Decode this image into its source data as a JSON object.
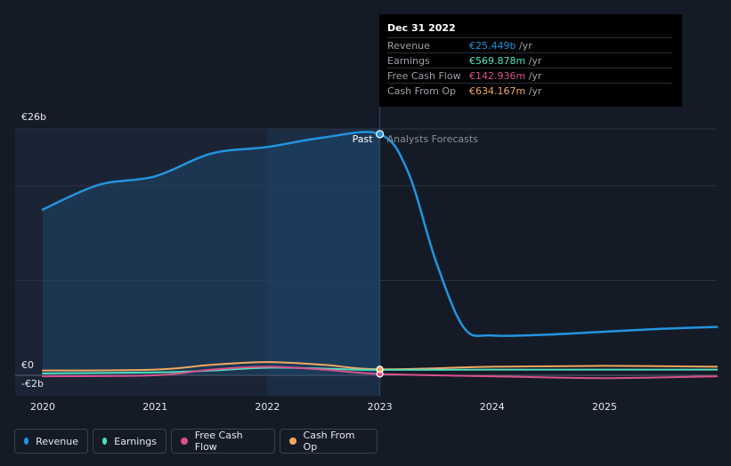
{
  "chart_data": {
    "type": "line",
    "title": "",
    "xlabel": "",
    "ylabel": "",
    "ylim": [
      -2,
      26
    ],
    "y_tick_labels": [
      "€26b",
      "€0",
      "-€2b"
    ],
    "x_tick_labels": [
      "2020",
      "2021",
      "2022",
      "2023",
      "2024",
      "2025"
    ],
    "past_label": "Past",
    "forecast_label": "Analysts Forecasts",
    "divider_x": 2023.0,
    "series": [
      {
        "name": "Revenue",
        "color": "#2394df",
        "points": [
          [
            2020.0,
            17.5
          ],
          [
            2020.5,
            20.1
          ],
          [
            2021.0,
            21.0
          ],
          [
            2021.5,
            23.4
          ],
          [
            2022.0,
            24.1
          ],
          [
            2022.5,
            25.1
          ],
          [
            2023.0,
            25.449
          ],
          [
            2023.25,
            21.5
          ],
          [
            2023.5,
            12.0
          ],
          [
            2023.75,
            5.0
          ],
          [
            2024.0,
            4.2
          ],
          [
            2024.5,
            4.3
          ],
          [
            2025.0,
            4.6
          ],
          [
            2025.5,
            4.9
          ],
          [
            2026.0,
            5.1
          ]
        ]
      },
      {
        "name": "Earnings",
        "color": "#4fe0c0",
        "points": [
          [
            2020.0,
            0.2
          ],
          [
            2021.0,
            0.3
          ],
          [
            2021.5,
            0.5
          ],
          [
            2022.0,
            0.8
          ],
          [
            2022.5,
            0.7
          ],
          [
            2023.0,
            0.57
          ],
          [
            2024.0,
            0.6
          ],
          [
            2025.0,
            0.6
          ],
          [
            2026.0,
            0.6
          ]
        ]
      },
      {
        "name": "Free Cash Flow",
        "color": "#d9508a",
        "points": [
          [
            2020.0,
            -0.1
          ],
          [
            2021.0,
            0.0
          ],
          [
            2021.5,
            0.6
          ],
          [
            2022.0,
            0.9
          ],
          [
            2022.5,
            0.6
          ],
          [
            2023.0,
            0.143
          ],
          [
            2024.0,
            -0.1
          ],
          [
            2025.0,
            -0.3
          ],
          [
            2026.0,
            -0.1
          ]
        ]
      },
      {
        "name": "Cash From Op",
        "color": "#f0a860",
        "points": [
          [
            2020.0,
            0.5
          ],
          [
            2021.0,
            0.6
          ],
          [
            2021.5,
            1.1
          ],
          [
            2022.0,
            1.4
          ],
          [
            2022.5,
            1.1
          ],
          [
            2023.0,
            0.634
          ],
          [
            2024.0,
            0.9
          ],
          [
            2025.0,
            1.0
          ],
          [
            2026.0,
            0.9
          ]
        ]
      }
    ]
  },
  "tooltip": {
    "date": "Dec 31 2022",
    "rows": [
      {
        "label": "Revenue",
        "value": "€25.449b",
        "unit": " /yr",
        "color": "#2394df"
      },
      {
        "label": "Earnings",
        "value": "€569.878m",
        "unit": " /yr",
        "color": "#4fe0c0"
      },
      {
        "label": "Free Cash Flow",
        "value": "€142.936m",
        "unit": " /yr",
        "color": "#d9508a"
      },
      {
        "label": "Cash From Op",
        "value": "€634.167m",
        "unit": " /yr",
        "color": "#f0a860"
      }
    ]
  },
  "legend": [
    {
      "label": "Revenue",
      "color": "#2394df"
    },
    {
      "label": "Earnings",
      "color": "#4fe0c0"
    },
    {
      "label": "Free Cash Flow",
      "color": "#d9508a"
    },
    {
      "label": "Cash From Op",
      "color": "#f0a860"
    }
  ]
}
